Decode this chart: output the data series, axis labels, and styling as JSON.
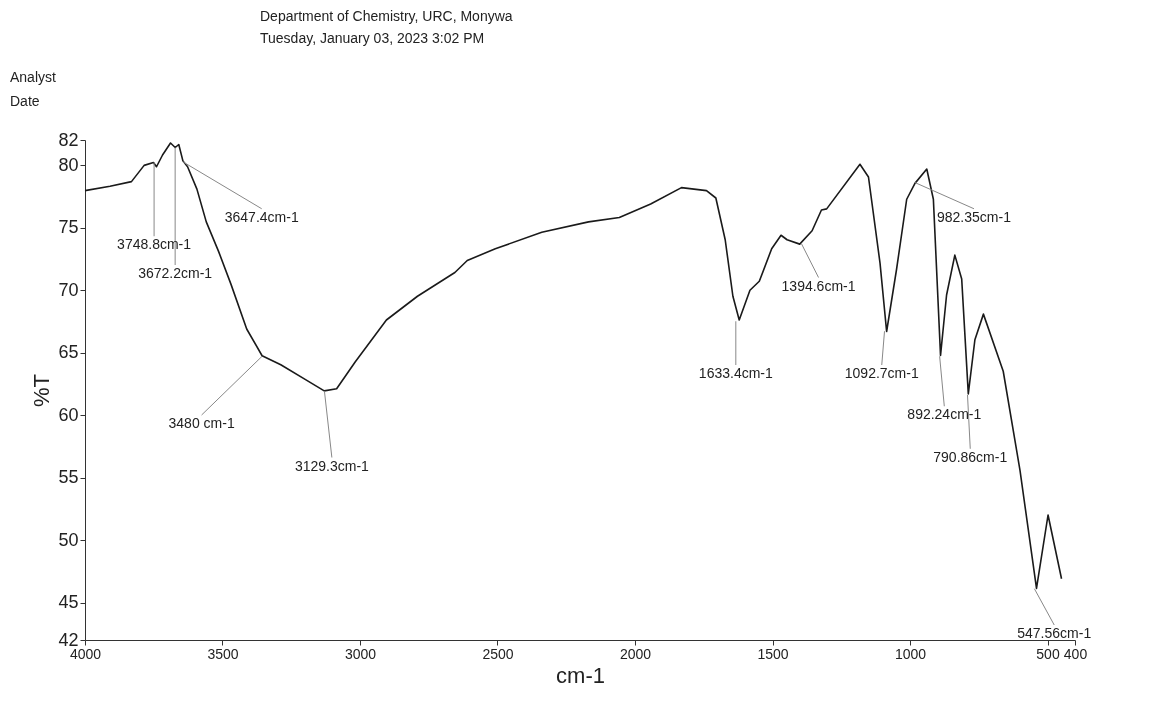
{
  "chart_data": {
    "type": "line",
    "title": "Department of Chemistry, URC, Monywa",
    "subtitle": "Tuesday, January 03, 2023 3:02 PM",
    "xlabel": "cm-1",
    "ylabel": "%T",
    "x": [
      4000,
      3909,
      3831,
      3785,
      3751,
      3740,
      3718,
      3689,
      3672,
      3659,
      3644,
      3627,
      3593,
      3559,
      3514,
      3469,
      3412,
      3356,
      3288,
      3198,
      3130,
      3085,
      3017,
      2904,
      2791,
      2655,
      2610,
      2508,
      2339,
      2169,
      2057,
      1943,
      1831,
      1740,
      1706,
      1672,
      1644,
      1621,
      1582,
      1548,
      1503,
      1469,
      1447,
      1401,
      1356,
      1322,
      1303,
      1182,
      1151,
      1109,
      1085,
      1049,
      1012,
      982,
      939,
      915,
      889,
      867,
      837,
      812,
      788,
      764,
      733,
      661,
      600,
      540,
      498,
      449
    ],
    "series": [
      {
        "color": "#1a1a1a",
        "values": [
          77.95,
          78.3,
          78.67,
          79.97,
          80.2,
          79.86,
          80.8,
          81.76,
          81.4,
          81.64,
          80.33,
          79.86,
          78.07,
          75.45,
          73.07,
          70.45,
          66.88,
          64.74,
          64.02,
          62.83,
          61.93,
          62.1,
          64.26,
          67.6,
          69.5,
          71.4,
          72.36,
          73.3,
          74.62,
          75.45,
          75.8,
          76.88,
          78.19,
          77.95,
          77.36,
          74.02,
          69.5,
          67.6,
          69.98,
          70.7,
          73.3,
          74.38,
          74.02,
          73.67,
          74.74,
          76.4,
          76.49,
          80.06,
          79.04,
          72.15,
          66.68,
          71.64,
          77.26,
          78.53,
          79.68,
          77.26,
          64.76,
          69.6,
          72.79,
          70.88,
          61.69,
          66.02,
          68.07,
          63.5,
          55.57,
          46.13,
          52.0,
          46.9
        ]
      }
    ],
    "xlim": [
      4000,
      400
    ],
    "ylim": [
      42,
      82
    ],
    "xticks": [
      4000,
      3500,
      3000,
      2500,
      2000,
      1500,
      1000,
      500,
      400
    ],
    "yticks": [
      42,
      45,
      50,
      55,
      60,
      65,
      70,
      75,
      80,
      82
    ],
    "grid": false,
    "marker": "none",
    "line_style": "solid",
    "annotations": [
      "Analyst",
      "Date",
      {
        "text": "3748.8cm-1",
        "x": 3748.8,
        "y": 80.2
      },
      {
        "text": "3672.2cm-1",
        "x": 3672.2,
        "y": 81.4
      },
      {
        "text": "3647.4cm-1",
        "x": 3647.4,
        "y": 80.3
      },
      {
        "text": "3480 cm-1",
        "x": 3356,
        "y": 64.7
      },
      {
        "text": "3129.3cm-1",
        "x": 3129.3,
        "y": 61.9
      },
      {
        "text": "1633.4cm-1",
        "x": 1633.4,
        "y": 67.5
      },
      {
        "text": "1394.6cm-1",
        "x": 1394.6,
        "y": 73.7
      },
      {
        "text": "1092.7cm-1",
        "x": 1092.7,
        "y": 66.7
      },
      {
        "text": "982.35cm-1",
        "x": 982.35,
        "y": 78.6
      },
      {
        "text": "892.24cm-1",
        "x": 892.24,
        "y": 64.7
      },
      {
        "text": "790.86cm-1",
        "x": 790.86,
        "y": 61.6
      },
      {
        "text": "547.56cm-1",
        "x": 547.56,
        "y": 46.1
      }
    ]
  }
}
